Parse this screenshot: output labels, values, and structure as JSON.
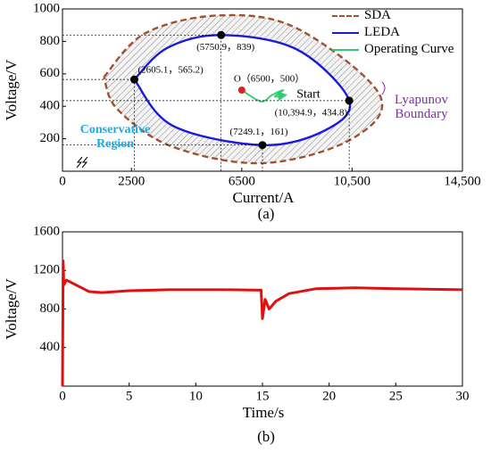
{
  "chart_data": [
    {
      "type": "scatter",
      "xlabel": "Current/A",
      "ylabel": "Voltage/V",
      "caption": "(a)",
      "xlim": [
        0,
        14500
      ],
      "xticks": [
        0,
        2500,
        6500,
        {
          "value": 10500,
          "label": "10,500"
        },
        {
          "value": 14500,
          "label": "14,500"
        }
      ],
      "ylim": [
        0,
        1000
      ],
      "yticks": [
        200,
        400,
        600,
        800,
        1000
      ],
      "series": [
        {
          "name": "SDA",
          "color": "#a0522d",
          "style": "dashed",
          "x": [
            1500,
            3000,
            5700,
            8500,
            11500,
            10500,
            7300,
            4000,
            2000,
            1500
          ],
          "y": [
            580,
            850,
            960,
            880,
            470,
            200,
            50,
            150,
            380,
            580
          ]
        },
        {
          "name": "LEDA",
          "color": "#1a1adb",
          "style": "solid",
          "x": [
            2605.1,
            3800,
            5750.9,
            8500,
            10394.9,
            9500,
            7249.1,
            4000,
            2605.1
          ],
          "y": [
            565.2,
            760,
            839,
            750,
            434.8,
            250,
            161,
            280,
            565.2
          ]
        },
        {
          "name": "Operating Curve",
          "color": "#2ecc71",
          "style": "solid",
          "x": [
            6500,
            7200,
            7600,
            8000,
            7700,
            8100
          ],
          "y": [
            500,
            430,
            470,
            500,
            460,
            470
          ]
        }
      ],
      "points": {
        "x": [
          2605.1,
          5750.9,
          10394.9,
          7249.1
        ],
        "y": [
          565.2,
          839,
          434.8,
          161
        ],
        "labels": [
          "(2605.1，565.2)",
          "(5750.9，839)",
          "(10,394.9，434.8)",
          "(7249.1，161)"
        ]
      },
      "origin": {
        "x": 6500,
        "y": 500,
        "label": "O（6500，500）",
        "color": "#e02020"
      },
      "annotations": {
        "start": "Start",
        "region": "Conservative Region",
        "boundary": "Lyapunov Boundary"
      }
    },
    {
      "type": "line",
      "xlabel": "Time/s",
      "ylabel": "Voltage/V",
      "caption": "(b)",
      "color": "#e01010",
      "xlim": [
        0,
        30
      ],
      "xticks": [
        0,
        5,
        10,
        15,
        20,
        25,
        30
      ],
      "ylim": [
        0,
        1600
      ],
      "yticks": [
        400,
        800,
        1200,
        1600
      ],
      "x": [
        0,
        0.05,
        0.1,
        0.3,
        1,
        2,
        3,
        5,
        8,
        12,
        14.9,
        15,
        15.2,
        15.5,
        16,
        17,
        19,
        22,
        25,
        30
      ],
      "values": [
        0,
        1300,
        1050,
        1100,
        1050,
        980,
        970,
        990,
        1000,
        1000,
        995,
        700,
        900,
        800,
        880,
        960,
        1010,
        1020,
        1010,
        1000
      ]
    }
  ]
}
